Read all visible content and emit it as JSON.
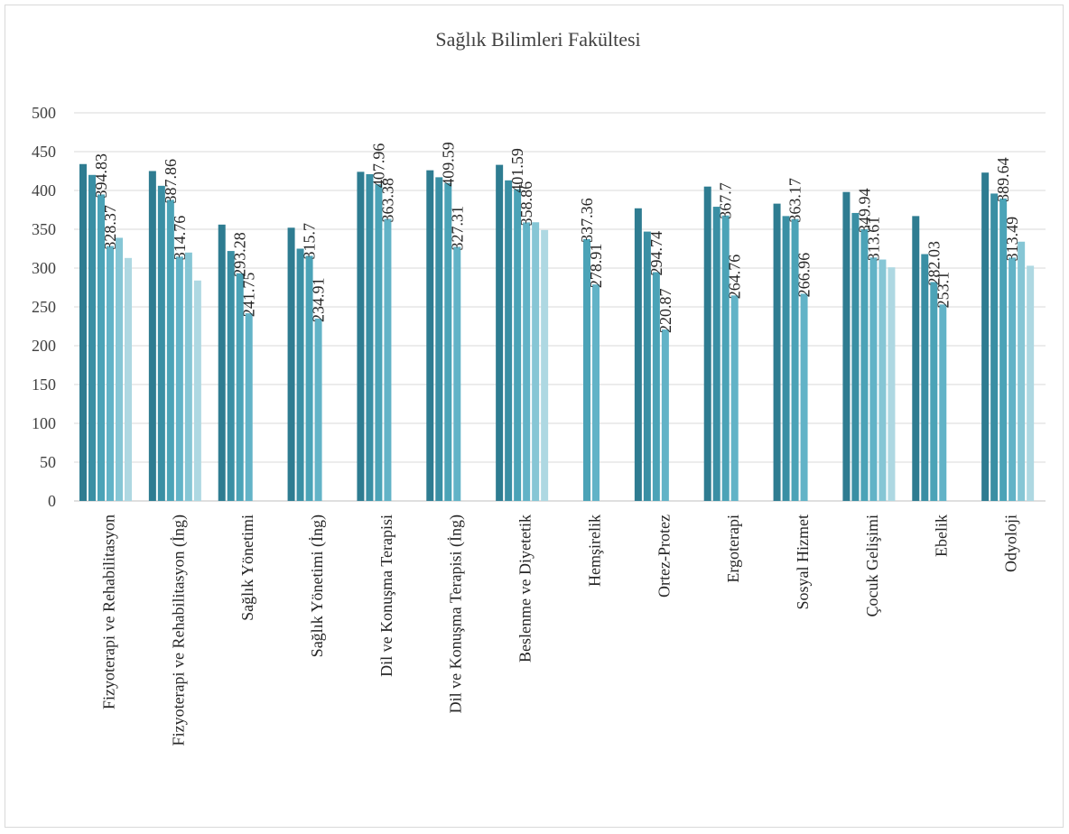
{
  "chart_data": {
    "type": "bar",
    "title": "Sağlık Bilimleri Fakültesi",
    "ylim": [
      0,
      500
    ],
    "yticks": [
      0,
      50,
      100,
      150,
      200,
      250,
      300,
      350,
      400,
      450,
      500
    ],
    "grid": true,
    "legend": "none",
    "colors": [
      "#2e7c91",
      "#3a8fa4",
      "#4ba3b7",
      "#62b3c7",
      "#86c6d5",
      "#aed8e2"
    ],
    "categories": [
      "Fizyoterapi ve Rehabilitasyon",
      "Fizyoterapi ve Rehabilitasyon (İng)",
      "Sağlık Yönetimi",
      "Sağlık Yönetimi (İng)",
      "Dil ve Konuşma Terapisi",
      "Dil ve Konuşma Terapisi (İng)",
      "Beslenme ve Diyetetik",
      "Hemşirelik",
      "Ortez-Protez",
      "Ergoterapi",
      "Sosyal Hizmet",
      "Çocuk Gelişimi",
      "Ebelik",
      "Odyoloji"
    ],
    "groups": [
      {
        "values": [
          434,
          420,
          394.83,
          328.37,
          339,
          313
        ],
        "labels": [
          "",
          "",
          "394.83",
          "328.37",
          "",
          ""
        ]
      },
      {
        "values": [
          425,
          406,
          387.86,
          314.76,
          320,
          284
        ],
        "labels": [
          "",
          "",
          "387.86",
          "314.76",
          "",
          ""
        ]
      },
      {
        "values": [
          356,
          322,
          293.28,
          241.75
        ],
        "labels": [
          "",
          "",
          "293.28",
          "241.75"
        ]
      },
      {
        "values": [
          352,
          325,
          315.7,
          234.91
        ],
        "labels": [
          "",
          "",
          "315.7",
          "234.91"
        ]
      },
      {
        "values": [
          424,
          421,
          407.96,
          363.38
        ],
        "labels": [
          "",
          "",
          "407.96",
          "363.38"
        ]
      },
      {
        "values": [
          426,
          417,
          409.59,
          327.31
        ],
        "labels": [
          "",
          "",
          "409.59",
          "327.31"
        ]
      },
      {
        "values": [
          433,
          413,
          401.59,
          358.86,
          359,
          349
        ],
        "labels": [
          "",
          "",
          "401.59",
          "358.86",
          "",
          ""
        ]
      },
      {
        "values": [
          null,
          null,
          337.36,
          278.91
        ],
        "labels": [
          "",
          "",
          "337.36",
          "278.91"
        ]
      },
      {
        "values": [
          377,
          347,
          294.74,
          220.87
        ],
        "labels": [
          "",
          "",
          "294.74",
          "220.87"
        ]
      },
      {
        "values": [
          405,
          379,
          367.7,
          264.76
        ],
        "labels": [
          "",
          "",
          "367.7",
          "264.76"
        ]
      },
      {
        "values": [
          383,
          367,
          363.17,
          266.96
        ],
        "labels": [
          "",
          "",
          "363.17",
          "266.96"
        ]
      },
      {
        "values": [
          398,
          371,
          349.94,
          313.61,
          311,
          301
        ],
        "labels": [
          "",
          "",
          "349.94",
          "313.61",
          "",
          ""
        ]
      },
      {
        "values": [
          367,
          318,
          282.03,
          253.1
        ],
        "labels": [
          "",
          "",
          "282.03",
          "253.1"
        ]
      },
      {
        "values": [
          423,
          396,
          389.64,
          313.49,
          334,
          303
        ],
        "labels": [
          "",
          "",
          "389.64",
          "313.49",
          "",
          ""
        ]
      }
    ]
  }
}
